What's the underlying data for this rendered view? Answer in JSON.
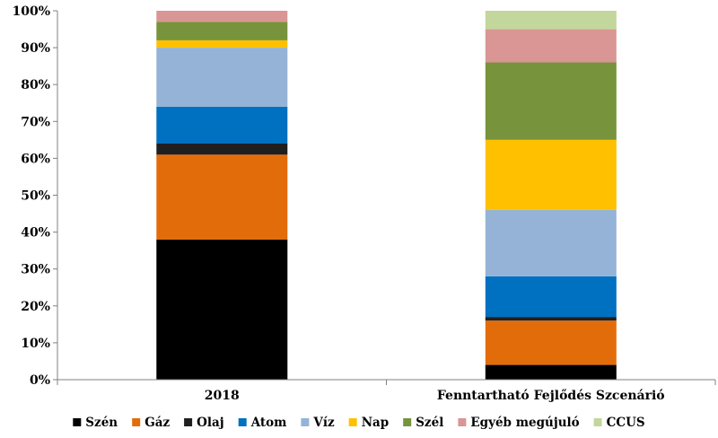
{
  "chart_data": {
    "type": "bar",
    "stacked": true,
    "categories": [
      "2018",
      "Fenntartható Fejlődés Szcenárió"
    ],
    "series": [
      {
        "name": "Szén",
        "color": "#000000",
        "values": [
          38,
          4
        ]
      },
      {
        "name": "Gáz",
        "color": "#E36C0A",
        "values": [
          23,
          12
        ]
      },
      {
        "name": "Olaj",
        "color": "#1F1F1F",
        "values": [
          3,
          1
        ]
      },
      {
        "name": "Atom",
        "color": "#0070C0",
        "values": [
          10,
          11
        ]
      },
      {
        "name": "Víz",
        "color": "#95B3D7",
        "values": [
          16,
          18
        ]
      },
      {
        "name": "Nap",
        "color": "#FFC000",
        "values": [
          2,
          19
        ]
      },
      {
        "name": "Szél",
        "color": "#77933C",
        "values": [
          5,
          21
        ]
      },
      {
        "name": "Egyéb megújuló",
        "color": "#D99694",
        "values": [
          3,
          9
        ]
      },
      {
        "name": "CCUS",
        "color": "#C3D69B",
        "values": [
          0,
          5
        ]
      }
    ],
    "y_ticks": [
      "0%",
      "10%",
      "20%",
      "30%",
      "40%",
      "50%",
      "60%",
      "70%",
      "80%",
      "90%",
      "100%"
    ],
    "ylim": [
      0,
      100
    ],
    "legend_position": "bottom",
    "grid": false
  }
}
